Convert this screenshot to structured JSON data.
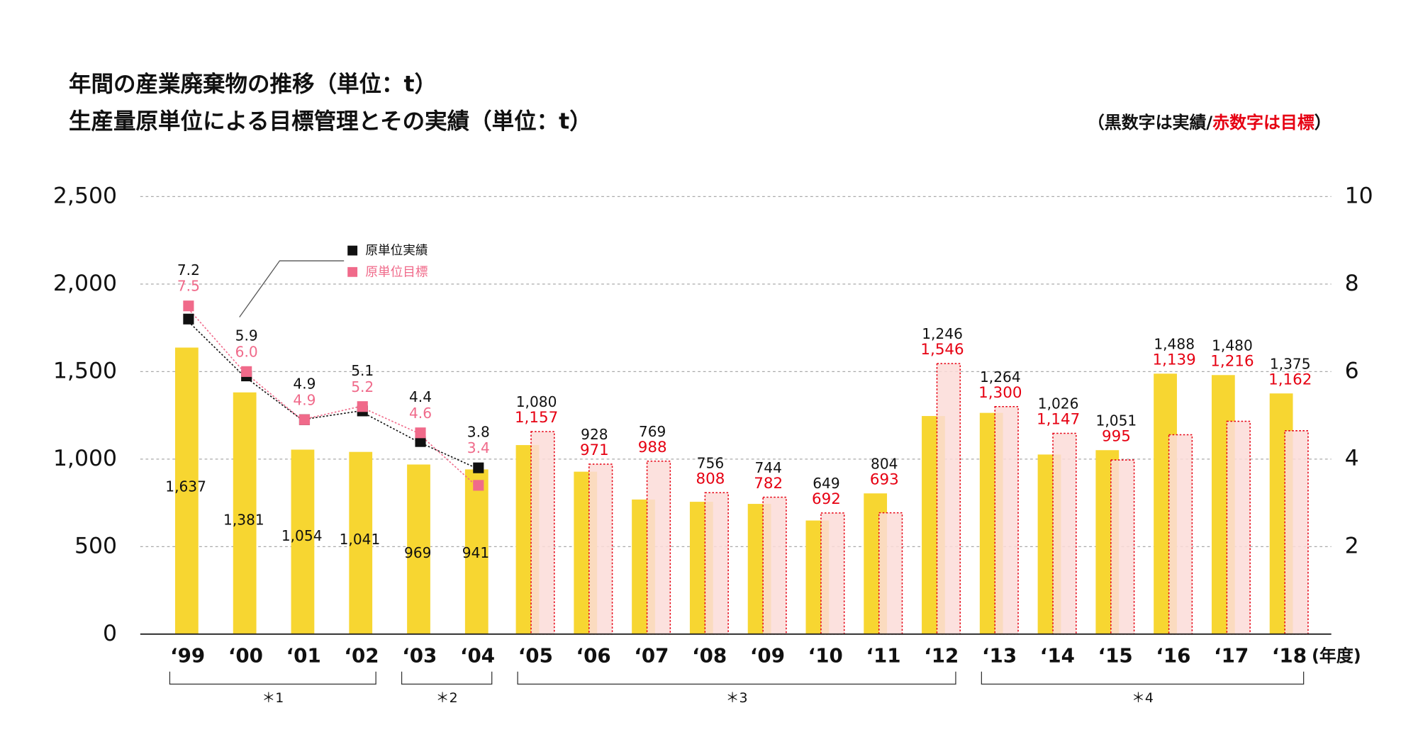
{
  "chart_data": {
    "type": "bar",
    "title": [
      "年間の産業廃棄物の推移（単位：t）",
      "生産量原単位による目標管理とその実績（単位：t）"
    ],
    "note": [
      "（黒数字は実績/",
      "赤数字は目標",
      "）"
    ],
    "x_label": "(年度)",
    "categories": [
      "‘99",
      "‘00",
      "‘01",
      "‘02",
      "‘03",
      "‘04",
      "‘05",
      "‘06",
      "‘07",
      "‘08",
      "‘09",
      "‘10",
      "‘11",
      "‘12",
      "‘13",
      "‘14",
      "‘15",
      "‘16",
      "‘17",
      "‘18"
    ],
    "series": [
      {
        "name": "実績",
        "color": "#f7d631",
        "values": [
          1637,
          1381,
          1054,
          1041,
          969,
          941,
          1080,
          928,
          769,
          756,
          744,
          649,
          804,
          1246,
          1264,
          1026,
          1051,
          1488,
          1480,
          1375
        ],
        "value_labels": [
          "1,637",
          "1,381",
          "1,054",
          "1,041",
          "969",
          "941",
          "1,080",
          "928",
          "769",
          "756",
          "744",
          "649",
          "804",
          "1,246",
          "1,264",
          "1,026",
          "1,051",
          "1,488",
          "1,480",
          "1,375"
        ]
      },
      {
        "name": "目標",
        "color": "#fbdcd8",
        "label_color": "#e60012",
        "values": [
          null,
          null,
          null,
          null,
          null,
          null,
          1157,
          971,
          988,
          808,
          782,
          692,
          693,
          1546,
          1300,
          1147,
          995,
          1139,
          1216,
          1162
        ],
        "value_labels": [
          null,
          null,
          null,
          null,
          null,
          null,
          "1,157",
          "971",
          "988",
          "808",
          "782",
          "692",
          "693",
          "1,546",
          "1,300",
          "1,147",
          "995",
          "1,139",
          "1,216",
          "1,162"
        ]
      },
      {
        "name": "原単位実績",
        "type": "line",
        "axis": "y2",
        "color": "#111111",
        "values": [
          7.2,
          5.9,
          4.9,
          5.1,
          4.4,
          3.8,
          null,
          null,
          null,
          null,
          null,
          null,
          null,
          null,
          null,
          null,
          null,
          null,
          null,
          null
        ],
        "value_labels": [
          "7.2",
          "5.9",
          "4.9",
          "5.1",
          "4.4",
          "3.8",
          null,
          null,
          null,
          null,
          null,
          null,
          null,
          null,
          null,
          null,
          null,
          null,
          null,
          null
        ]
      },
      {
        "name": "原単位目標",
        "type": "line",
        "axis": "y2",
        "color": "#f06a8a",
        "values": [
          7.5,
          6.0,
          4.9,
          5.2,
          4.6,
          3.4,
          null,
          null,
          null,
          null,
          null,
          null,
          null,
          null,
          null,
          null,
          null,
          null,
          null,
          null
        ],
        "value_labels": [
          "7.5",
          "6.0",
          "4.9",
          "5.2",
          "4.6",
          "3.4",
          null,
          null,
          null,
          null,
          null,
          null,
          null,
          null,
          null,
          null,
          null,
          null,
          null,
          null
        ]
      }
    ],
    "groups": [
      "＊1",
      "＊2",
      "＊3",
      "＊4"
    ],
    "ylim": [
      0,
      2500
    ],
    "yticks": [
      0,
      500,
      {
        "value": 1000,
        "label": "1,000"
      },
      {
        "value": 1500,
        "label": "1,500"
      },
      {
        "value": 2000,
        "label": "2,000"
      },
      {
        "value": 2500,
        "label": "2,500"
      }
    ],
    "y2lim": [
      0,
      10
    ],
    "y2ticks": [
      2,
      4,
      6,
      8,
      10
    ],
    "grid": true
  }
}
